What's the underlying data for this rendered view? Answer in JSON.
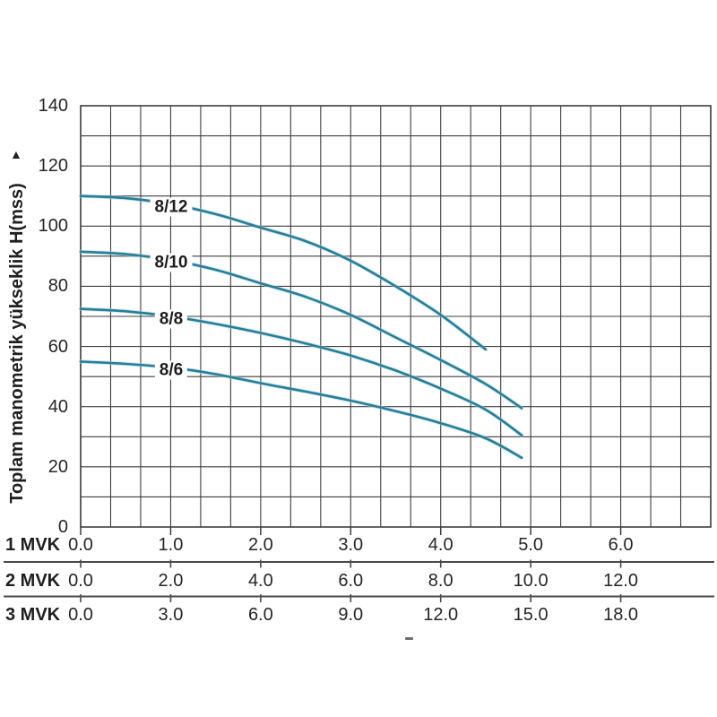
{
  "chart_data": {
    "type": "line",
    "title": "",
    "ylabel": "Toplam manometrik yükseklik H(mss)",
    "ylabel_arrow": "▲",
    "ylim": [
      0,
      140
    ],
    "y_grid_step": 10,
    "y_ticks": [
      "0",
      "20",
      "40",
      "60",
      "80",
      "100",
      "120",
      "140"
    ],
    "xlim": [
      0,
      7
    ],
    "x_grid_divisions_per_unit": 3,
    "grid": true,
    "legend_position": "on-curve",
    "x_axes": [
      {
        "label": "1 MVK",
        "tick_labels": [
          "0.0",
          "1.0",
          "2.0",
          "3.0",
          "4.0",
          "5.0",
          "6.0"
        ]
      },
      {
        "label": "2 MVK",
        "tick_labels": [
          "0.0",
          "2.0",
          "4.0",
          "6.0",
          "8.0",
          "10.0",
          "12.0"
        ]
      },
      {
        "label": "3 MVK",
        "tick_labels": [
          "0.0",
          "3.0",
          "6.0",
          "9.0",
          "12.0",
          "15.0",
          "18.0"
        ]
      }
    ],
    "series": [
      {
        "name": "8/12",
        "points": [
          [
            0,
            110
          ],
          [
            0.5,
            109.3
          ],
          [
            1.0,
            107.3
          ],
          [
            1.5,
            104
          ],
          [
            2.0,
            99.5
          ],
          [
            2.5,
            95
          ],
          [
            3.0,
            88.5
          ],
          [
            3.5,
            80
          ],
          [
            4.0,
            70.5
          ],
          [
            4.5,
            59
          ]
        ]
      },
      {
        "name": "8/10",
        "points": [
          [
            0,
            91.5
          ],
          [
            0.5,
            90.7
          ],
          [
            1.0,
            88.7
          ],
          [
            1.5,
            85.5
          ],
          [
            2.0,
            81
          ],
          [
            2.5,
            76.5
          ],
          [
            3.0,
            70.5
          ],
          [
            3.5,
            63
          ],
          [
            4.0,
            55.5
          ],
          [
            4.5,
            47.5
          ],
          [
            4.9,
            39.5
          ]
        ]
      },
      {
        "name": "8/8",
        "points": [
          [
            0,
            72.5
          ],
          [
            0.5,
            71.7
          ],
          [
            1.0,
            70
          ],
          [
            1.5,
            67.5
          ],
          [
            2.0,
            64.5
          ],
          [
            2.5,
            61
          ],
          [
            3.0,
            57
          ],
          [
            3.5,
            52
          ],
          [
            4.0,
            46
          ],
          [
            4.5,
            39
          ],
          [
            4.9,
            30.5
          ]
        ]
      },
      {
        "name": "8/6",
        "points": [
          [
            0,
            55
          ],
          [
            0.5,
            54.2
          ],
          [
            1.0,
            53
          ],
          [
            1.5,
            50.8
          ],
          [
            2.0,
            47.8
          ],
          [
            2.5,
            45
          ],
          [
            3.0,
            42
          ],
          [
            3.5,
            38.5
          ],
          [
            4.0,
            34.5
          ],
          [
            4.5,
            29.5
          ],
          [
            4.9,
            23
          ]
        ]
      }
    ]
  },
  "colors": {
    "curve": "#277e99",
    "curve_halo": "#a8d6e4",
    "grid": "#3e3e3e",
    "separator": "#4a4a4a",
    "text": "#262626",
    "background": "#ffffff"
  },
  "stray_mark": "-"
}
